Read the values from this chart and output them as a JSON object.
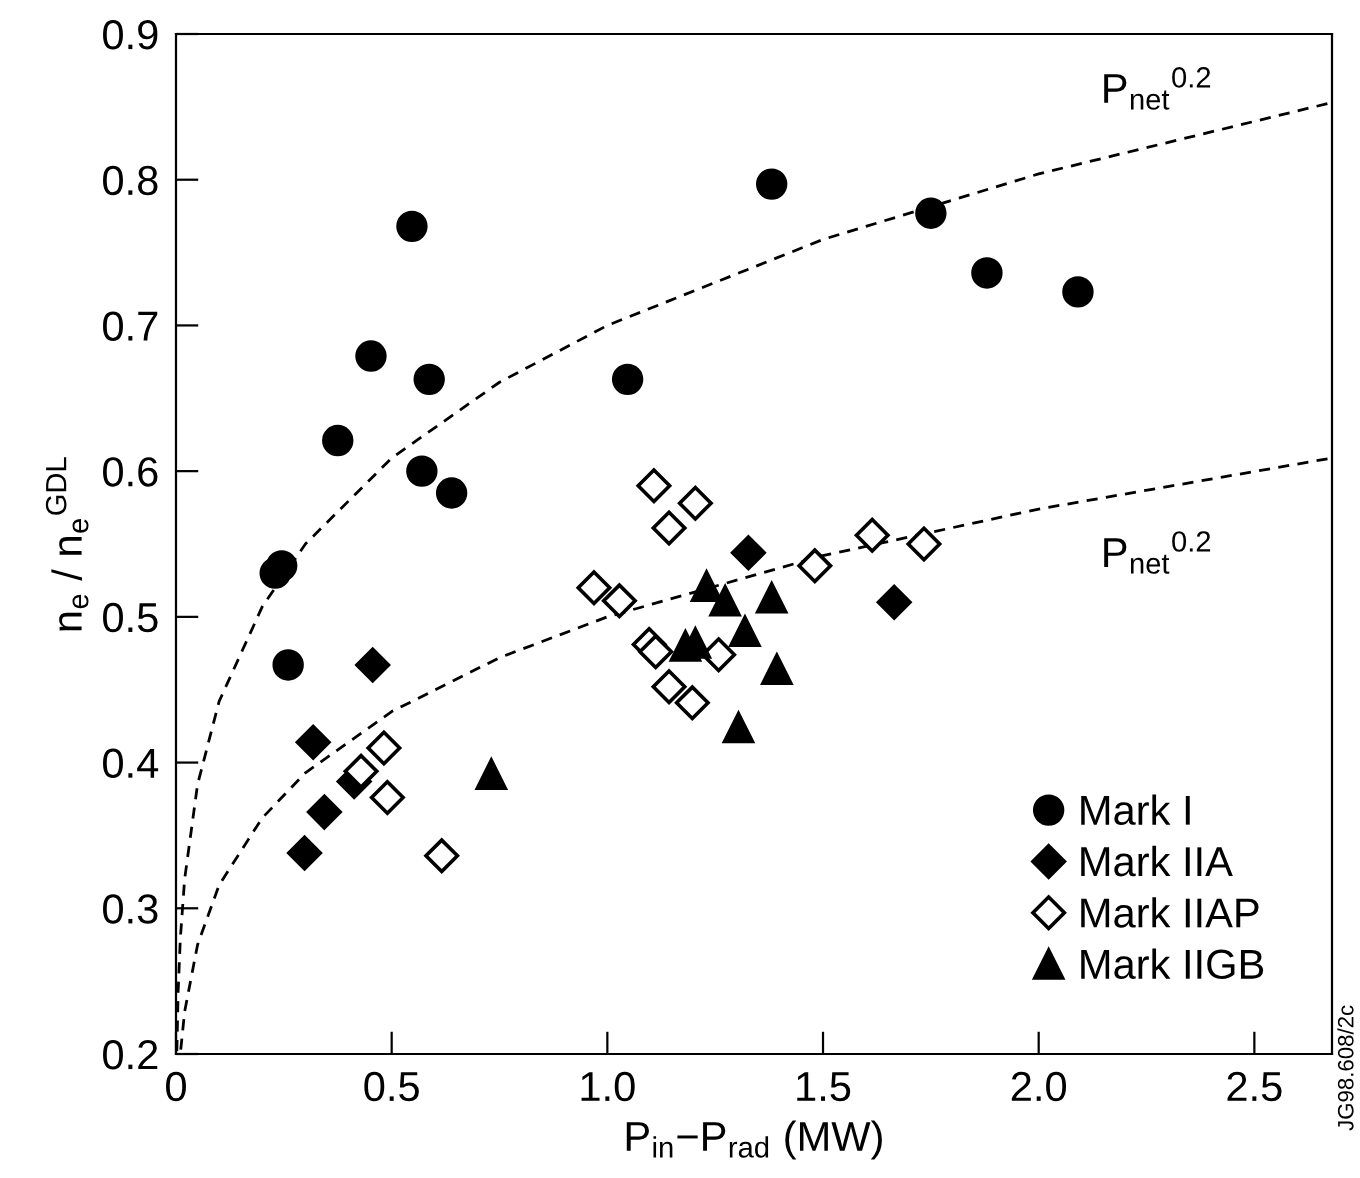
{
  "chart_data": {
    "type": "scatter",
    "xlabel": "P$_{in}$−P$_{rad}$ (MW)",
    "ylabel": "n$_{e}$ / n$_{e}$$^{GDL}$",
    "xlim": [
      0,
      2.68
    ],
    "ylim": [
      0.2,
      0.9
    ],
    "xticks": [
      {
        "value": 0,
        "label": "0"
      },
      0.5,
      {
        "value": 1,
        "label": "1.0"
      },
      1.5,
      {
        "value": 2,
        "label": "2.0"
      },
      2.5
    ],
    "yticks": [
      0.2,
      0.3,
      0.4,
      0.5,
      0.6,
      0.7,
      0.8,
      0.9
    ],
    "grid": false,
    "legend": "bottom right",
    "series": [
      {
        "name": "Mark I",
        "color": "#000000",
        "marker": "circle",
        "x": [
          0.23,
          0.245,
          0.547,
          0.452,
          0.587,
          0.375,
          0.57,
          0.639,
          1.047,
          0.26,
          1.381,
          1.75,
          1.88,
          2.091
        ],
        "values": [
          0.53,
          0.535,
          0.768,
          0.679,
          0.663,
          0.621,
          0.6,
          0.585,
          0.663,
          0.467,
          0.797,
          0.777,
          0.736,
          0.723
        ]
      },
      {
        "name": "Mark IIA",
        "color": "#000000",
        "marker": "diamond",
        "x": [
          0.456,
          0.318,
          0.413,
          0.344,
          0.298,
          1.327,
          1.665
        ],
        "values": [
          0.467,
          0.414,
          0.387,
          0.366,
          0.338,
          0.544,
          0.51
        ]
      },
      {
        "name": "Mark IIAP",
        "color": "#ffffff",
        "marker": "diamond",
        "x": [
          0.482,
          0.429,
          0.49,
          0.616,
          1.028,
          1.097,
          1.112,
          1.258,
          1.143,
          1.197,
          1.108,
          1.143,
          1.204,
          0.969,
          1.481,
          1.614,
          1.734
        ],
        "values": [
          0.41,
          0.394,
          0.376,
          0.336,
          0.511,
          0.481,
          0.476,
          0.474,
          0.452,
          0.441,
          0.59,
          0.561,
          0.578,
          0.52,
          0.535,
          0.556,
          0.55
        ]
      },
      {
        "name": "Mark IIGB",
        "color": "#000000",
        "marker": "triangle",
        "x": [
          0.731,
          1.181,
          1.204,
          1.23,
          1.273,
          1.319,
          1.381,
          1.393,
          1.304
        ],
        "values": [
          0.392,
          0.48,
          0.482,
          0.521,
          0.511,
          0.49,
          0.513,
          0.464,
          0.424
        ]
      },
      {
        "type": "line",
        "color": "#000000",
        "line_style": "dashed",
        "marker": "none",
        "x": [
          0.002,
          0.005,
          0.01,
          0.02,
          0.05,
          0.1,
          0.2,
          0.3,
          0.5,
          0.75,
          1,
          1.5,
          2,
          2.68
        ],
        "values": [
          0.202,
          0.243,
          0.279,
          0.32,
          0.385,
          0.442,
          0.507,
          0.55,
          0.609,
          0.661,
          0.7,
          0.759,
          0.804,
          0.853
        ]
      },
      {
        "type": "line",
        "color": "#000000",
        "line_style": "dashed",
        "marker": "none",
        "x": [
          0.011,
          0.02,
          0.05,
          0.1,
          0.2,
          0.3,
          0.5,
          0.75,
          1,
          1.5,
          2,
          2.68
        ],
        "values": [
          0.203,
          0.229,
          0.275,
          0.316,
          0.362,
          0.393,
          0.435,
          0.472,
          0.5,
          0.542,
          0.574,
          0.609
        ]
      }
    ],
    "annotations": [
      "P$_{net}$$^{0.2}$",
      "P$_{net}$$^{0.2}$",
      "JG98.608/2c"
    ]
  }
}
